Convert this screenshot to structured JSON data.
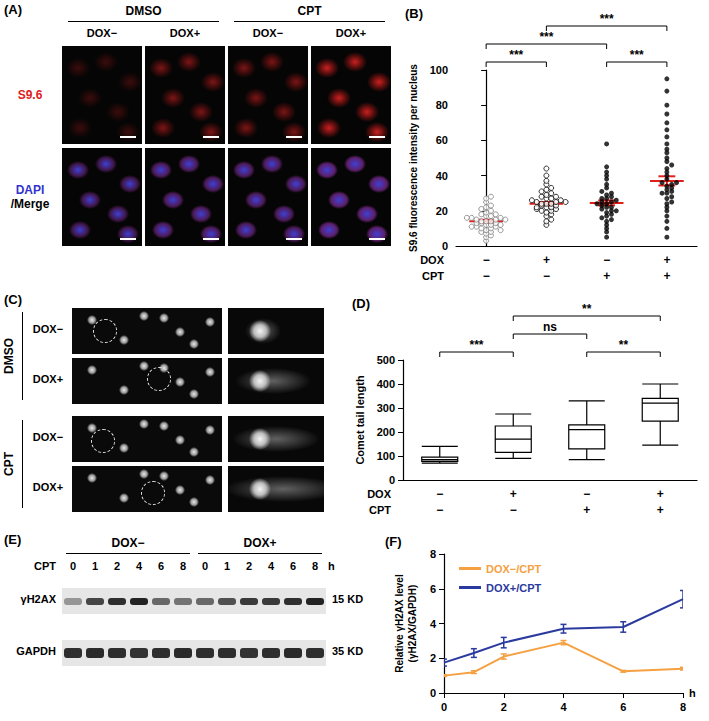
{
  "panel_a": {
    "label": "(A)",
    "groups": [
      {
        "title": "DMSO",
        "columns": [
          "DOX−",
          "DOX+"
        ]
      },
      {
        "title": "CPT",
        "columns": [
          "DOX−",
          "DOX+"
        ]
      }
    ],
    "row_labels": [
      [
        {
          "text": "S9.6",
          "color": "#e0201b"
        }
      ],
      [
        {
          "text": "DAPI",
          "color": "#3333cc"
        },
        {
          "text": "/Merge",
          "color": "#000000"
        }
      ]
    ]
  },
  "panel_c": {
    "label": "(C)",
    "groups": [
      {
        "title": "DMSO",
        "rows": [
          "DOX−",
          "DOX+"
        ]
      },
      {
        "title": "CPT",
        "rows": [
          "DOX−",
          "DOX+"
        ]
      }
    ]
  },
  "panel_e": {
    "label": "(E)",
    "groups": [
      "DOX−",
      "DOX+"
    ],
    "row_label": "CPT",
    "times": [
      0,
      1,
      2,
      4,
      6,
      8
    ],
    "time_unit": "h",
    "blots": [
      {
        "name": "γH2AX",
        "size": "15 KD",
        "intensity": [
          0.35,
          0.7,
          0.8,
          0.85,
          0.55,
          0.5,
          0.55,
          0.65,
          0.75,
          0.75,
          0.8,
          0.85
        ]
      },
      {
        "name": "GAPDH",
        "size": "35 KD",
        "intensity": [
          0.8,
          0.82,
          0.8,
          0.78,
          0.8,
          0.82,
          0.8,
          0.8,
          0.78,
          0.8,
          0.82,
          0.8
        ]
      }
    ]
  },
  "chart_data": [
    {
      "type": "scatter",
      "title": "(B)",
      "ylabel": "S9.6 fluorescence intensity per nucleus",
      "ylim": [
        0,
        100
      ],
      "yticks": [
        0,
        20,
        40,
        60,
        80,
        100
      ],
      "tick_labels": "y",
      "grid": false,
      "series": [
        {
          "color": "#7f7f7f",
          "marker": "open_circle",
          "values": [
            3,
            5,
            6,
            7,
            8,
            8,
            9,
            10,
            10,
            11,
            11,
            12,
            12,
            13,
            13,
            13,
            14,
            14,
            14,
            15,
            15,
            16,
            16,
            17,
            17,
            18,
            18,
            19,
            20,
            21,
            22,
            23,
            25,
            27,
            28,
            9,
            12,
            15,
            11,
            16
          ]
        },
        {
          "color": "#000000",
          "marker": "open_circle",
          "values": [
            12,
            14,
            15,
            17,
            18,
            19,
            20,
            20,
            21,
            21,
            22,
            22,
            23,
            23,
            24,
            24,
            24,
            25,
            25,
            26,
            26,
            27,
            27,
            28,
            28,
            29,
            30,
            31,
            32,
            33,
            35,
            37,
            40,
            44,
            22,
            25
          ]
        },
        {
          "color": "#000000",
          "marker": "circle",
          "values": [
            5,
            8,
            10,
            12,
            14,
            15,
            16,
            17,
            18,
            19,
            20,
            21,
            22,
            22,
            23,
            24,
            25,
            25,
            26,
            27,
            28,
            29,
            30,
            31,
            33,
            35,
            38,
            40,
            42,
            45,
            58,
            20,
            24,
            27
          ]
        },
        {
          "color": "#000000",
          "marker": "circle",
          "values": [
            5,
            10,
            14,
            17,
            20,
            22,
            24,
            25,
            27,
            28,
            30,
            31,
            32,
            33,
            34,
            35,
            36,
            38,
            40,
            42,
            44,
            46,
            48,
            50,
            53,
            55,
            58,
            62,
            66,
            70,
            75,
            80,
            88,
            95,
            30,
            36
          ]
        }
      ],
      "means": [
        14,
        24,
        24.5,
        37
      ],
      "sem": [
        0.9,
        1.0,
        1.4,
        2.6
      ],
      "mean_color": "#e0201b",
      "conditions": [
        {
          "name": "DOX",
          "signs": [
            "−",
            "+",
            "−",
            "+"
          ]
        },
        {
          "name": "CPT",
          "signs": [
            "−",
            "−",
            "+",
            "+"
          ]
        }
      ],
      "significance": [
        {
          "from": 0,
          "to": 1,
          "label": "***"
        },
        {
          "from": 0,
          "to": 2,
          "label": "***"
        },
        {
          "from": 2,
          "to": 3,
          "label": "***"
        },
        {
          "from": 1,
          "to": 3,
          "label": "***"
        }
      ]
    },
    {
      "type": "boxplot",
      "title": "(D)",
      "ylabel": "Comet tail length",
      "categories": [
        null,
        null,
        null,
        null
      ],
      "values": [
        [
          70,
          78,
          85,
          95,
          140
        ],
        [
          90,
          115,
          170,
          225,
          275
        ],
        [
          85,
          130,
          210,
          230,
          330
        ],
        [
          145,
          245,
          320,
          340,
          400
        ]
      ],
      "color": "#000000",
      "ylim": [
        0,
        500
      ],
      "yticks": [
        0,
        100,
        200,
        300,
        400,
        500
      ],
      "tick_labels": "y",
      "grid": false,
      "conditions": [
        {
          "name": "DOX",
          "signs": [
            "−",
            "+",
            "−",
            "+"
          ]
        },
        {
          "name": "CPT",
          "signs": [
            "−",
            "−",
            "+",
            "+"
          ]
        }
      ],
      "significance": [
        {
          "from": 0,
          "to": 1,
          "label": "***"
        },
        {
          "from": 1,
          "to": 2,
          "label": "ns"
        },
        {
          "from": 2,
          "to": 3,
          "label": "**"
        },
        {
          "from": 1,
          "to": 3,
          "label": "**"
        }
      ]
    },
    {
      "type": "line",
      "title": "(F)",
      "xlabel": "h",
      "ylabel": [
        "Relative γH2AX level",
        "(γH2AX/GAPDH)"
      ],
      "x": [
        0,
        1,
        2,
        4,
        6,
        8
      ],
      "xlim": [
        0,
        8
      ],
      "xticks": [
        0,
        2,
        4,
        6,
        8
      ],
      "ylim": [
        0,
        8
      ],
      "yticks": [
        0,
        2,
        4,
        6,
        8
      ],
      "legend": "upper left",
      "grid": false,
      "series": [
        {
          "name": "DOX−/CPT",
          "color": "#f5a142",
          "values": [
            1.0,
            1.2,
            2.1,
            2.9,
            1.25,
            1.4
          ],
          "errors": [
            0.05,
            0.08,
            0.15,
            0.12,
            0.05,
            0.08
          ]
        },
        {
          "name": "DOX+/CPT",
          "color": "#2b3a9e",
          "values": [
            1.75,
            2.3,
            2.9,
            3.7,
            3.8,
            5.4
          ],
          "errors": [
            0.2,
            0.25,
            0.3,
            0.25,
            0.3,
            0.5
          ]
        }
      ]
    }
  ]
}
